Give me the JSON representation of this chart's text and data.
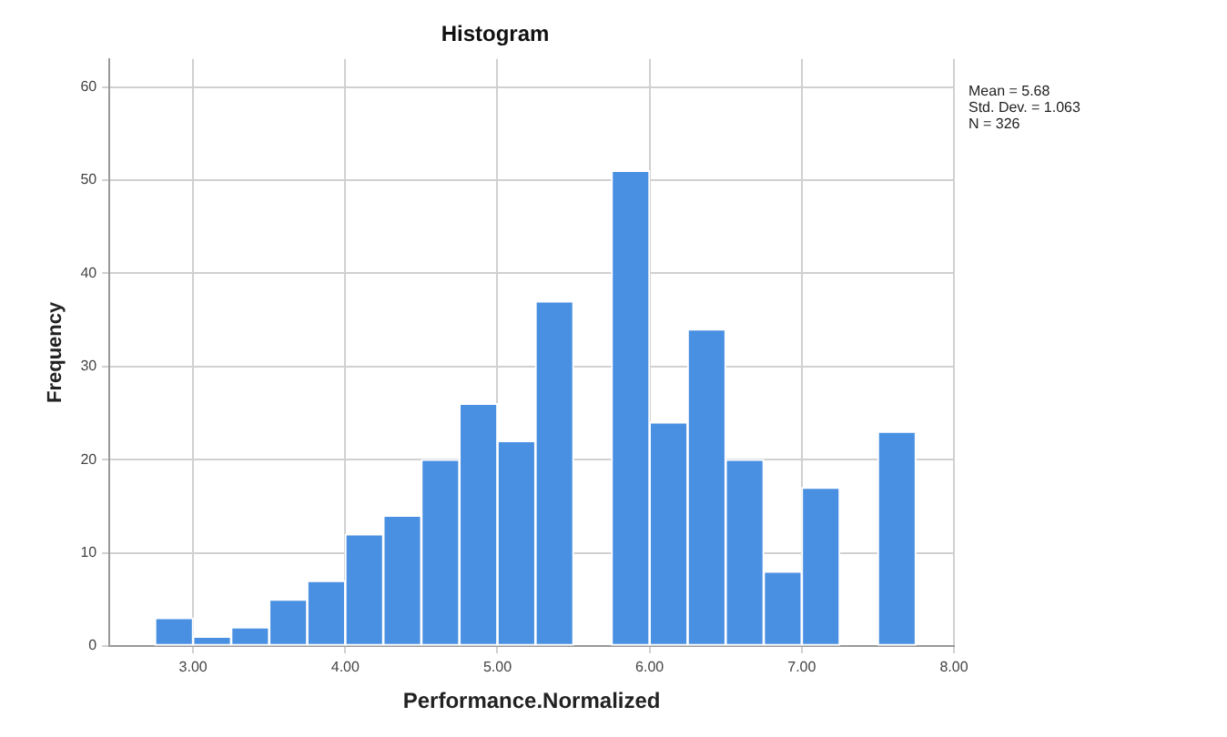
{
  "chart_data": {
    "type": "histogram",
    "title": "Histogram",
    "xlabel": "Performance.Normalized",
    "ylabel": "Frequency",
    "bins": [
      2.75,
      3,
      3.25,
      3.5,
      3.75,
      4,
      4.25,
      4.5,
      4.75,
      5,
      5.25,
      5.5,
      5.75,
      6,
      6.25,
      6.5,
      6.75,
      7,
      7.25,
      7.5,
      7.75
    ],
    "values": [
      3,
      1,
      2,
      5,
      7,
      12,
      14,
      20,
      26,
      22,
      37,
      0,
      51,
      24,
      34,
      20,
      8,
      17,
      0,
      23
    ],
    "color": "#4a90e2",
    "xlim": [
      2.45,
      8
    ],
    "xticks": [
      {
        "value": 3,
        "label": "3.00"
      },
      {
        "value": 4,
        "label": "4.00"
      },
      {
        "value": 5,
        "label": "5.00"
      },
      {
        "value": 6,
        "label": "6.00"
      },
      {
        "value": 7,
        "label": "7.00"
      },
      {
        "value": 8,
        "label": "8.00"
      }
    ],
    "ylim": [
      0,
      63
    ],
    "yticks": [
      0,
      10,
      20,
      30,
      40,
      50,
      60
    ],
    "grid": true,
    "annotations": [
      "Mean = 5.68",
      "Std. Dev. = 1.063",
      "N = 326"
    ]
  }
}
